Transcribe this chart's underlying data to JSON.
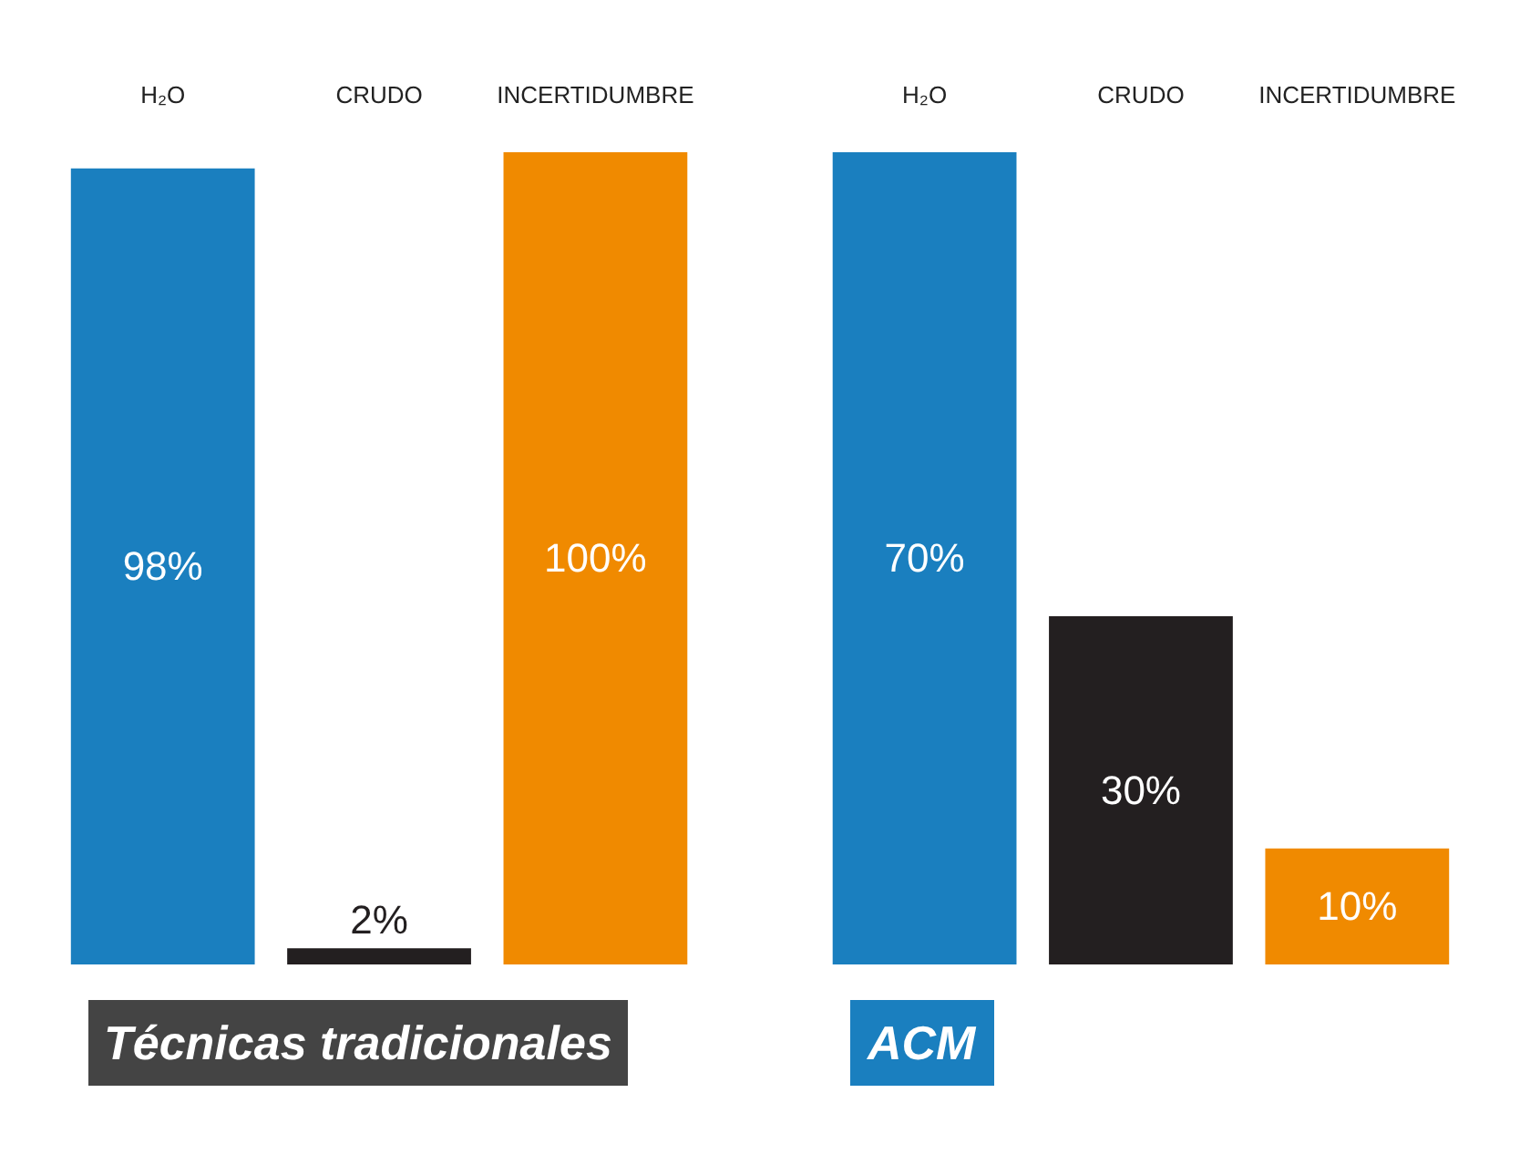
{
  "chart_data": [
    {
      "type": "bar",
      "title": "Técnicas tradicionales",
      "categories": [
        "H₂O",
        "CRUDO",
        "INCERTIDUMBRE"
      ],
      "values": [
        98,
        2,
        100
      ],
      "value_labels": [
        "98%",
        "2%",
        "100%"
      ],
      "colors": [
        "#1a7fbf",
        "#231f20",
        "#f08a00"
      ],
      "tick_labels": "x"
    },
    {
      "type": "bar",
      "title": "ACM",
      "categories": [
        "H₂O",
        "CRUDO",
        "INCERTIDUMBRE"
      ],
      "values": [
        70,
        30,
        10
      ],
      "value_labels": [
        "70%",
        "30%",
        "10%"
      ],
      "colors": [
        "#1a7fbf",
        "#231f20",
        "#f08a00"
      ],
      "tick_labels": "x"
    }
  ]
}
